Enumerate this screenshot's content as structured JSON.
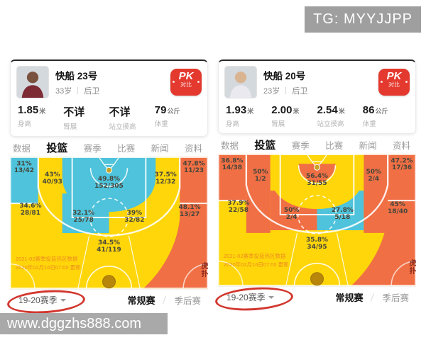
{
  "watermark_tg": "TG: MYYJJPP",
  "watermark_site": "www.dggzhs888.com",
  "chart_footer_line1": "2021-02赛季投篮热区数据",
  "chart_footer_line2": "2020年02月16日07:00 更新",
  "hupu_logo": "虎扑",
  "colors": {
    "yellow": "#FFD60A",
    "cyan": "#4EC3DB",
    "orange": "#F06F44",
    "accent_red": "#E4392E",
    "annotation_red": "#CE261C",
    "ball": "#B8860B",
    "label_text": "#46463C"
  },
  "panels": [
    {
      "player": {
        "name": "快船 23号",
        "age": "33岁",
        "position": "后卫"
      },
      "avatar": {
        "skin": "#7a5240",
        "jersey": "#7d2b35"
      },
      "pk": {
        "label": "PK",
        "sub": "对比"
      },
      "attributes": [
        {
          "value": "1.85",
          "unit": "米",
          "label": "身高"
        },
        {
          "value": "不详",
          "unit": "",
          "label": "臂展"
        },
        {
          "value": "不详",
          "unit": "",
          "label": "站立摸高"
        },
        {
          "value": "79",
          "unit": "公斤",
          "label": "体重"
        }
      ],
      "tabs": [
        {
          "label": "数据",
          "active": false
        },
        {
          "label": "投篮",
          "active": true
        },
        {
          "label": "赛季",
          "active": false
        },
        {
          "label": "比赛",
          "active": false
        },
        {
          "label": "新闻",
          "active": false
        },
        {
          "label": "资料",
          "active": false
        }
      ],
      "season": {
        "selector": "19-20赛季",
        "regular": "常规赛",
        "playoffs": "季后赛"
      },
      "zones": {
        "corner_left": {
          "pct": "31%",
          "ratio": "13/42",
          "color": "cyan"
        },
        "mid_left": {
          "pct": "43%",
          "ratio": "40/93",
          "color": "yellow"
        },
        "paint": {
          "pct": "49.8%",
          "ratio": "152/305",
          "color": "cyan"
        },
        "mid_right": {
          "pct": "37.5%",
          "ratio": "12/32",
          "color": "yellow"
        },
        "corner_right": {
          "pct": "47.8%",
          "ratio": "11/23",
          "color": "orange"
        },
        "wing_left": {
          "pct": "34.6%",
          "ratio": "28/81",
          "color": "yellow"
        },
        "lower_left": {
          "pct": "32.1%",
          "ratio": "25/78",
          "color": "cyan"
        },
        "lower_right": {
          "pct": "39%",
          "ratio": "32/82",
          "color": "yellow"
        },
        "wing_right": {
          "pct": "48.1%",
          "ratio": "13/27",
          "color": "orange"
        },
        "top_key": {
          "pct": "34.5%",
          "ratio": "41/119",
          "color": "yellow"
        },
        "restricted": {
          "color": "cyan"
        }
      }
    },
    {
      "player": {
        "name": "快船 20号",
        "age": "23岁",
        "position": "后卫"
      },
      "avatar": {
        "skin": "#d9b491",
        "jersey": "#e9e9ef"
      },
      "pk": {
        "label": "PK",
        "sub": "对比"
      },
      "attributes": [
        {
          "value": "1.93",
          "unit": "米",
          "label": "身高"
        },
        {
          "value": "2.00",
          "unit": "米",
          "label": "臂展"
        },
        {
          "value": "2.54",
          "unit": "米",
          "label": "站立摸高"
        },
        {
          "value": "86",
          "unit": "公斤",
          "label": "体重"
        }
      ],
      "tabs": [
        {
          "label": "数据",
          "active": false
        },
        {
          "label": "投篮",
          "active": true
        },
        {
          "label": "赛季",
          "active": false
        },
        {
          "label": "比赛",
          "active": false
        },
        {
          "label": "新闻",
          "active": false
        },
        {
          "label": "资料",
          "active": false
        }
      ],
      "season": {
        "selector": "19-20赛季",
        "regular": "常规赛",
        "playoffs": "季后赛"
      },
      "zones": {
        "corner_left": {
          "pct": "36.8%",
          "ratio": "14/38",
          "color": "orange"
        },
        "mid_left": {
          "pct": "50%",
          "ratio": "1/2",
          "color": "orange"
        },
        "paint": {
          "pct": "56.4%",
          "ratio": "31/55",
          "color": "yellow"
        },
        "mid_right": {
          "pct": "50%",
          "ratio": "2/4",
          "color": "orange"
        },
        "corner_right": {
          "pct": "47.2%",
          "ratio": "17/36",
          "color": "orange"
        },
        "wing_left": {
          "pct": "37.9%",
          "ratio": "22/58",
          "color": "yellow"
        },
        "lower_left": {
          "pct": "50%",
          "ratio": "2/4",
          "color": "orange"
        },
        "lower_right": {
          "pct": "27.8%",
          "ratio": "5/18",
          "color": "cyan"
        },
        "wing_right": {
          "pct": "45%",
          "ratio": "18/40",
          "color": "orange"
        },
        "top_key": {
          "pct": "35.8%",
          "ratio": "34/95",
          "color": "yellow"
        },
        "restricted": {
          "color": "orange"
        }
      }
    }
  ],
  "chart_data": [
    {
      "type": "heatmap",
      "title": "快船 23号 投篮热区 19-20赛季 常规赛",
      "zones": [
        {
          "zone": "left-corner-3",
          "fg_pct": 31.0,
          "made": 13,
          "attempts": 42
        },
        {
          "zone": "left-midrange",
          "fg_pct": 43.0,
          "made": 40,
          "attempts": 93
        },
        {
          "zone": "paint",
          "fg_pct": 49.8,
          "made": 152,
          "attempts": 305
        },
        {
          "zone": "right-midrange",
          "fg_pct": 37.5,
          "made": 12,
          "attempts": 32
        },
        {
          "zone": "right-corner-3",
          "fg_pct": 47.8,
          "made": 11,
          "attempts": 23
        },
        {
          "zone": "left-wing-3",
          "fg_pct": 34.6,
          "made": 28,
          "attempts": 81
        },
        {
          "zone": "low-paint-left",
          "fg_pct": 32.1,
          "made": 25,
          "attempts": 78
        },
        {
          "zone": "low-paint-right",
          "fg_pct": 39.0,
          "made": 32,
          "attempts": 82
        },
        {
          "zone": "right-wing-3",
          "fg_pct": 48.1,
          "made": 13,
          "attempts": 27
        },
        {
          "zone": "top-of-key-3",
          "fg_pct": 34.5,
          "made": 41,
          "attempts": 119
        }
      ]
    },
    {
      "type": "heatmap",
      "title": "快船 20号 投篮热区 19-20赛季 常规赛",
      "zones": [
        {
          "zone": "left-corner-3",
          "fg_pct": 36.8,
          "made": 14,
          "attempts": 38
        },
        {
          "zone": "left-midrange",
          "fg_pct": 50.0,
          "made": 1,
          "attempts": 2
        },
        {
          "zone": "paint",
          "fg_pct": 56.4,
          "made": 31,
          "attempts": 55
        },
        {
          "zone": "right-midrange",
          "fg_pct": 50.0,
          "made": 2,
          "attempts": 4
        },
        {
          "zone": "right-corner-3",
          "fg_pct": 47.2,
          "made": 17,
          "attempts": 36
        },
        {
          "zone": "left-wing-3",
          "fg_pct": 37.9,
          "made": 22,
          "attempts": 58
        },
        {
          "zone": "low-paint-left",
          "fg_pct": 50.0,
          "made": 2,
          "attempts": 4
        },
        {
          "zone": "low-paint-right",
          "fg_pct": 27.8,
          "made": 5,
          "attempts": 18
        },
        {
          "zone": "right-wing-3",
          "fg_pct": 45.0,
          "made": 18,
          "attempts": 40
        },
        {
          "zone": "top-of-key-3",
          "fg_pct": 35.8,
          "made": 34,
          "attempts": 95
        }
      ]
    }
  ]
}
